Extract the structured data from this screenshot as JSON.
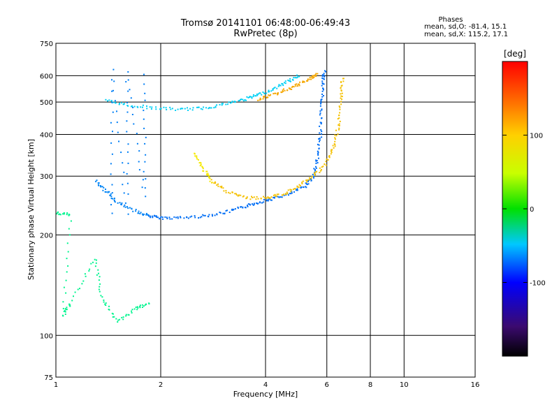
{
  "header": {
    "title_line1": "Tromsø 20141101 06:48:00-06:49:43",
    "title_line2": "RwPretec (8p)",
    "phases_title": "Phases",
    "phases_o": "mean, sd,O: -81.4, 15.1",
    "phases_x": "mean, sd,X: 115.2, 17.1"
  },
  "colorbar": {
    "unit": "[deg]",
    "range": [
      -200,
      200
    ],
    "tick_values": [
      100,
      0,
      -100
    ],
    "tick_labels": [
      "100",
      "0",
      "-100"
    ]
  },
  "chart_data": {
    "type": "scatter",
    "title": "Tromsø 20141101 06:48:00-06:49:43",
    "subtitle": "RwPretec (8p)",
    "xlabel": "Frequency [MHz]",
    "ylabel": "Stationary phase Virtual Height [km]",
    "xscale": "log",
    "yscale": "log",
    "xlim": [
      1,
      16
    ],
    "ylim": [
      75,
      750
    ],
    "xticks": [
      1,
      2,
      4,
      6,
      8,
      10,
      16
    ],
    "xtick_labels": [
      "1",
      "2",
      "4",
      "6",
      "8",
      "10",
      "16"
    ],
    "yticks": [
      75,
      100,
      200,
      300,
      400,
      500,
      600,
      750
    ],
    "ytick_labels": [
      "75",
      "100",
      "200",
      "300",
      "400",
      "500",
      "600",
      "750"
    ],
    "grid": true,
    "color_key": "phase [deg]",
    "series": [
      {
        "values": [
          [
            1.85,
            228
          ],
          [
            2.0,
            225
          ],
          [
            2.3,
            225
          ],
          [
            2.7,
            228
          ],
          [
            3.1,
            234
          ],
          [
            3.5,
            243
          ],
          [
            3.8,
            250
          ],
          [
            4.2,
            257
          ],
          [
            4.7,
            265
          ],
          [
            5.2,
            280
          ],
          [
            5.5,
            300
          ],
          [
            5.65,
            340
          ],
          [
            5.75,
            400
          ],
          [
            5.8,
            480
          ],
          [
            5.85,
            560
          ],
          [
            5.9,
            620
          ]
        ],
        "phase": -115
      },
      {
        "values": [
          [
            1.3,
            290
          ],
          [
            1.4,
            270
          ],
          [
            1.5,
            250
          ],
          [
            1.7,
            235
          ],
          [
            1.85,
            228
          ]
        ],
        "phase": -108
      },
      {
        "values": [
          [
            1.4,
            505
          ],
          [
            1.6,
            490
          ],
          [
            1.9,
            480
          ],
          [
            2.3,
            475
          ],
          [
            2.7,
            480
          ],
          [
            3.1,
            495
          ],
          [
            3.5,
            510
          ],
          [
            3.8,
            525
          ],
          [
            4.2,
            545
          ],
          [
            4.6,
            575
          ],
          [
            5.0,
            600
          ]
        ],
        "phase": -80
      },
      {
        "values": [
          [
            3.8,
            510
          ],
          [
            4.2,
            525
          ],
          [
            4.6,
            545
          ],
          [
            5.0,
            565
          ],
          [
            5.4,
            590
          ],
          [
            5.6,
            605
          ]
        ],
        "phase": 140
      },
      {
        "values": [
          [
            2.8,
            290
          ],
          [
            3.1,
            270
          ],
          [
            3.5,
            258
          ],
          [
            4.0,
            258
          ],
          [
            4.5,
            265
          ],
          [
            5.0,
            280
          ],
          [
            5.5,
            300
          ],
          [
            6.0,
            330
          ],
          [
            6.3,
            370
          ],
          [
            6.5,
            430
          ],
          [
            6.6,
            520
          ],
          [
            6.65,
            590
          ]
        ],
        "phase": 130
      },
      {
        "values": [
          [
            2.5,
            350
          ],
          [
            2.65,
            315
          ],
          [
            2.8,
            290
          ]
        ],
        "phase": 115
      },
      {
        "values": [
          [
            1.45,
            230
          ],
          [
            1.45,
            620
          ],
          [
            1.6,
            230
          ],
          [
            1.6,
            620
          ],
          [
            1.8,
            260
          ],
          [
            1.8,
            600
          ]
        ],
        "phase": -110
      },
      {
        "values": [
          [
            1.0,
            232
          ],
          [
            1.1,
            230
          ],
          [
            1.05,
            115
          ],
          [
            1.1,
            125
          ],
          [
            1.3,
            170
          ],
          [
            1.35,
            130
          ],
          [
            1.5,
            110
          ],
          [
            1.7,
            120
          ],
          [
            1.85,
            125
          ]
        ],
        "phase": -30
      }
    ]
  }
}
